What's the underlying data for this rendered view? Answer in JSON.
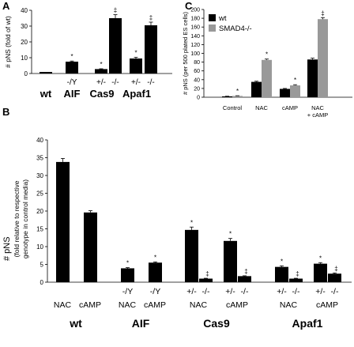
{
  "chart_data": [
    {
      "panel": "A",
      "type": "bar",
      "ylabel": "# pNS (fold of wt)",
      "ylim": [
        0,
        40
      ],
      "yticks": [
        0,
        10,
        20,
        30,
        40
      ],
      "groups": [
        "wt",
        "AIF",
        "Cas9",
        "Apaf1"
      ],
      "bars": [
        {
          "group": "wt",
          "genotype": "",
          "value": 1.0,
          "error": 0,
          "mark": ""
        },
        {
          "group": "AIF",
          "genotype": "-/Y",
          "value": 7.5,
          "error": 0.4,
          "mark": "*"
        },
        {
          "group": "Cas9",
          "genotype": "+/-",
          "value": 2.8,
          "error": 0.2,
          "mark": "*"
        },
        {
          "group": "Cas9",
          "genotype": "-/-",
          "value": 35.0,
          "error": 2.2,
          "mark": "‡"
        },
        {
          "group": "Apaf1",
          "genotype": "+/-",
          "value": 9.5,
          "error": 0.8,
          "mark": "*"
        },
        {
          "group": "Apaf1",
          "genotype": "-/-",
          "value": 30.5,
          "error": 2.0,
          "mark": "‡"
        }
      ]
    },
    {
      "panel": "B",
      "type": "bar",
      "ylabel_line1": "# pNS",
      "ylabel_line2": "(fold relative to respective",
      "ylabel_line3": "genotype in control media)",
      "ylim": [
        0,
        40
      ],
      "yticks": [
        0,
        5,
        10,
        15,
        20,
        25,
        30,
        35,
        40
      ],
      "groups": [
        "wt",
        "AIF",
        "Cas9",
        "Apaf1"
      ],
      "bars": [
        {
          "group": "wt",
          "treatment": "NAC",
          "genotype": "",
          "value": 33.8,
          "error": 1.0,
          "mark": ""
        },
        {
          "group": "wt",
          "treatment": "cAMP",
          "genotype": "",
          "value": 19.6,
          "error": 0.5,
          "mark": ""
        },
        {
          "group": "AIF",
          "treatment": "NAC",
          "genotype": "-/Y",
          "value": 3.9,
          "error": 0.2,
          "mark": "*"
        },
        {
          "group": "AIF",
          "treatment": "cAMP",
          "genotype": "-/Y",
          "value": 5.5,
          "error": 0.2,
          "mark": "*"
        },
        {
          "group": "Cas9",
          "treatment": "NAC",
          "genotype": "+/-",
          "value": 14.7,
          "error": 0.8,
          "mark": "*"
        },
        {
          "group": "Cas9",
          "treatment": "NAC",
          "genotype": "-/-",
          "value": 1.0,
          "error": 0.1,
          "mark": "‡"
        },
        {
          "group": "Cas9",
          "treatment": "cAMP",
          "genotype": "+/-",
          "value": 11.6,
          "error": 0.7,
          "mark": "*"
        },
        {
          "group": "Cas9",
          "treatment": "cAMP",
          "genotype": "-/-",
          "value": 1.7,
          "error": 0.1,
          "mark": "‡"
        },
        {
          "group": "Apaf1",
          "treatment": "NAC",
          "genotype": "+/-",
          "value": 4.3,
          "error": 0.3,
          "mark": "*"
        },
        {
          "group": "Apaf1",
          "treatment": "NAC",
          "genotype": "-/-",
          "value": 1.0,
          "error": 0.1,
          "mark": "‡"
        },
        {
          "group": "Apaf1",
          "treatment": "cAMP",
          "genotype": "+/-",
          "value": 5.2,
          "error": 0.3,
          "mark": "*"
        },
        {
          "group": "Apaf1",
          "treatment": "cAMP",
          "genotype": "-/-",
          "value": 2.4,
          "error": 0.2,
          "mark": "‡"
        }
      ]
    },
    {
      "panel": "C",
      "type": "bar",
      "ylabel": "# pNS (per 500 plated ES cells)",
      "ylim": [
        0,
        200
      ],
      "yticks": [
        0,
        20,
        40,
        60,
        80,
        100,
        120,
        140,
        160,
        180,
        200
      ],
      "categories": [
        "Control",
        "NAC",
        "cAMP",
        "NAC\n+ cAMP"
      ],
      "series": [
        {
          "name": "wt",
          "color": "#000000",
          "values": [
            2,
            35,
            19,
            86
          ],
          "errors": [
            0.3,
            1.5,
            1.0,
            3.0
          ],
          "marks": [
            "",
            "",
            "",
            ""
          ]
        },
        {
          "name": "SMAD4-/-",
          "color": "#999999",
          "values": [
            3,
            85,
            27,
            178
          ],
          "errors": [
            0.4,
            2.0,
            1.5,
            3.5
          ],
          "marks": [
            "*",
            "*",
            "*",
            "‡"
          ]
        }
      ],
      "legend": "top-left"
    }
  ]
}
